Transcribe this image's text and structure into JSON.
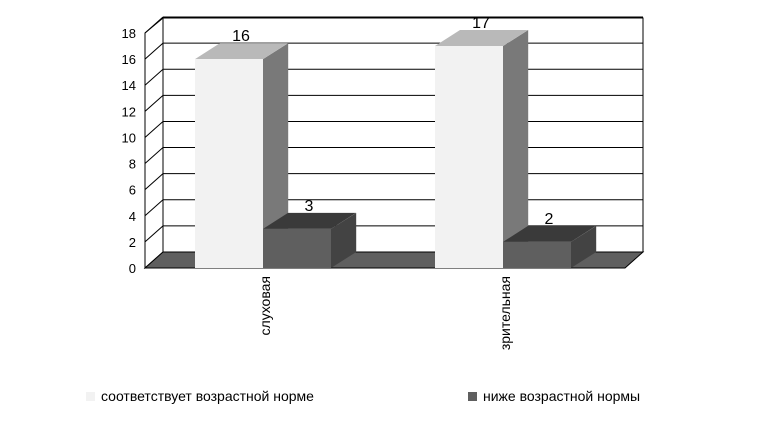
{
  "chart_data": {
    "type": "bar",
    "categories": [
      "слуховая",
      "зрительная"
    ],
    "series": [
      {
        "name": "соответствует возрастной норме",
        "values": [
          16,
          17
        ],
        "color": "#f2f2f2"
      },
      {
        "name": "ниже возрастной нормы",
        "values": [
          3,
          2
        ],
        "color": "#5f5f5f"
      }
    ],
    "ylim": [
      0,
      18
    ],
    "yticks": [
      0,
      2,
      4,
      6,
      8,
      10,
      12,
      14,
      16,
      18
    ],
    "grid": true,
    "legend_position": "bottom",
    "three_d": true
  }
}
